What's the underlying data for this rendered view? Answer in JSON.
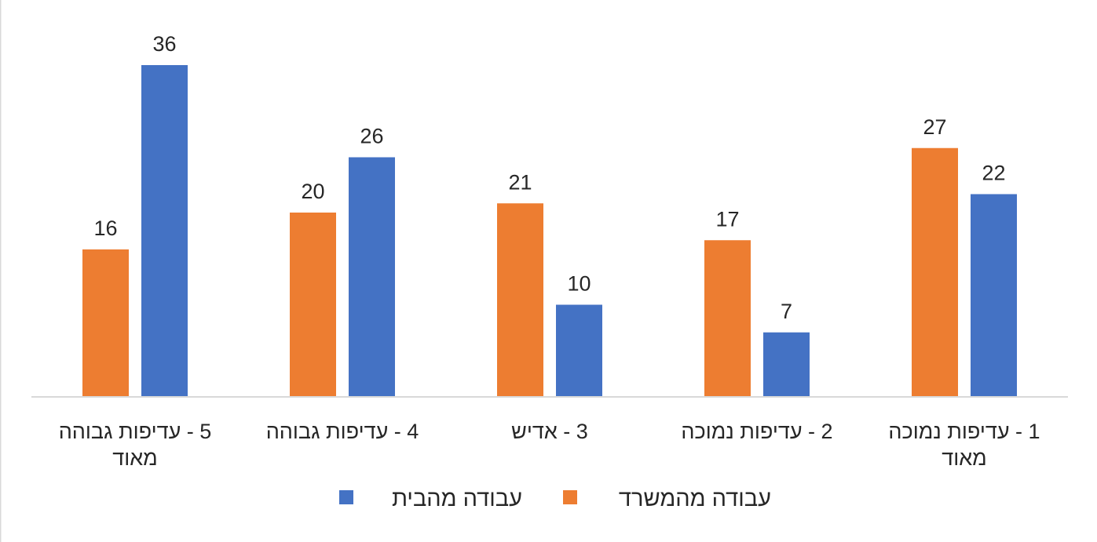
{
  "chart_data": {
    "type": "bar",
    "categories": [
      [
        "5 - עדיפות גבוהה",
        "מאוד"
      ],
      [
        "4 - עדיפות גבוהה"
      ],
      [
        "3 - אדיש"
      ],
      [
        "2 - עדיפות נמוכה"
      ],
      [
        "1 - עדיפות נמוכה",
        "מאוד"
      ]
    ],
    "series": [
      {
        "name": "עבודה מהמשרד",
        "color": "#ED7D31",
        "values": [
          16,
          20,
          21,
          17,
          27
        ]
      },
      {
        "name": "עבודה מהבית",
        "color": "#4472C4",
        "values": [
          36,
          26,
          10,
          7,
          22
        ]
      }
    ],
    "legend_order": [
      1,
      0
    ],
    "ylim": [
      0,
      36
    ],
    "grid": false,
    "legend": "bottom",
    "data_labels": true,
    "axis_color": "#D9D9D9"
  }
}
